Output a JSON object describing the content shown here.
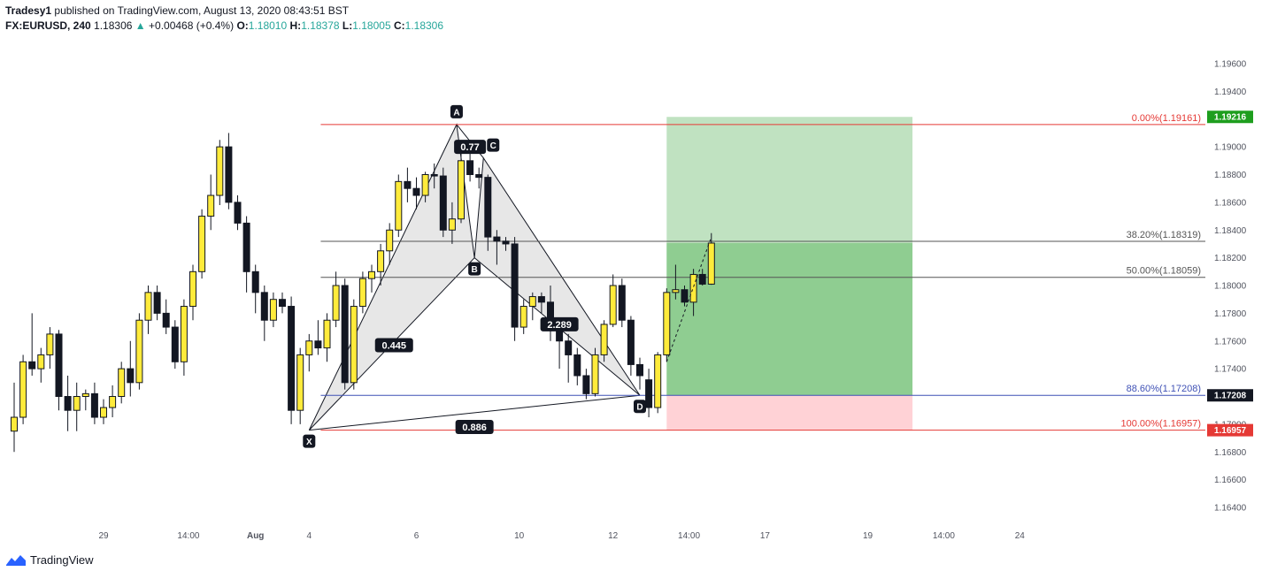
{
  "header": {
    "author": "Tradesy1",
    "published_text": "published on TradingView.com, August 13, 2020 08:43:51 BST",
    "symbol": "FX:EURUSD, 240",
    "last": "1.18306",
    "change": "+0.00468 (+0.4%)",
    "o_label": "O:",
    "o_value": "1.18010",
    "h_label": "H:",
    "h_value": "1.18378",
    "l_label": "L:",
    "l_value": "1.18005",
    "c_label": "C:",
    "c_value": "1.18306"
  },
  "footer": {
    "brand": "TradingView",
    "logo_icon": "tradingview-logo-icon"
  },
  "chart_data": {
    "type": "candlestick",
    "y_axis": {
      "range": [
        1.1625,
        1.198
      ],
      "ticks": [
        "1.19600",
        "1.19400",
        "1.19200",
        "1.19000",
        "1.18800",
        "1.18600",
        "1.18400",
        "1.18200",
        "1.18000",
        "1.17800",
        "1.17600",
        "1.17400",
        "1.17200",
        "1.17000",
        "1.16800",
        "1.16600",
        "1.16400"
      ],
      "tick_values": [
        1.196,
        1.194,
        1.192,
        1.19,
        1.188,
        1.186,
        1.184,
        1.182,
        1.18,
        1.178,
        1.176,
        1.174,
        1.172,
        1.17,
        1.168,
        1.166,
        1.164
      ]
    },
    "x_axis": {
      "labels": [
        "29",
        "14:00",
        "Aug",
        "4",
        "6",
        "10",
        "12",
        "14:00",
        "17",
        "19",
        "14:00",
        "24"
      ],
      "label_bar_index": [
        10,
        19.5,
        27,
        33,
        45,
        56.5,
        67,
        75.5,
        84,
        95.5,
        104,
        112.5
      ],
      "bold": [
        false,
        false,
        true,
        false,
        false,
        false,
        false,
        false,
        false,
        false,
        false,
        false
      ]
    },
    "candles": [
      [
        1.1695,
        1.173,
        1.168,
        1.1705
      ],
      [
        1.1705,
        1.175,
        1.17,
        1.1745
      ],
      [
        1.1745,
        1.178,
        1.1735,
        1.174
      ],
      [
        1.174,
        1.1755,
        1.173,
        1.175
      ],
      [
        1.175,
        1.177,
        1.174,
        1.1765
      ],
      [
        1.1765,
        1.1768,
        1.171,
        1.172
      ],
      [
        1.172,
        1.1735,
        1.1695,
        1.171
      ],
      [
        1.171,
        1.173,
        1.1695,
        1.172
      ],
      [
        1.172,
        1.1725,
        1.171,
        1.1722
      ],
      [
        1.1722,
        1.173,
        1.17,
        1.1705
      ],
      [
        1.1705,
        1.1718,
        1.17,
        1.1712
      ],
      [
        1.1712,
        1.1728,
        1.1705,
        1.172
      ],
      [
        1.172,
        1.1745,
        1.1715,
        1.174
      ],
      [
        1.174,
        1.176,
        1.172,
        1.173
      ],
      [
        1.173,
        1.178,
        1.1725,
        1.1775
      ],
      [
        1.1775,
        1.18,
        1.1765,
        1.1795
      ],
      [
        1.1795,
        1.18,
        1.1775,
        1.178
      ],
      [
        1.178,
        1.179,
        1.1765,
        1.177
      ],
      [
        1.177,
        1.1775,
        1.174,
        1.1745
      ],
      [
        1.1745,
        1.179,
        1.1735,
        1.1785
      ],
      [
        1.1785,
        1.1815,
        1.1775,
        1.181
      ],
      [
        1.181,
        1.1855,
        1.1805,
        1.185
      ],
      [
        1.185,
        1.188,
        1.184,
        1.1865
      ],
      [
        1.1865,
        1.1905,
        1.1858,
        1.19
      ],
      [
        1.19,
        1.191,
        1.1855,
        1.186
      ],
      [
        1.186,
        1.1865,
        1.184,
        1.1845
      ],
      [
        1.1845,
        1.185,
        1.1795,
        1.181
      ],
      [
        1.181,
        1.1815,
        1.178,
        1.1795
      ],
      [
        1.1795,
        1.18,
        1.176,
        1.1775
      ],
      [
        1.1775,
        1.1795,
        1.177,
        1.179
      ],
      [
        1.179,
        1.1795,
        1.178,
        1.1785
      ],
      [
        1.1785,
        1.1792,
        1.17,
        1.171
      ],
      [
        1.171,
        1.1755,
        1.17,
        1.175
      ],
      [
        1.175,
        1.1765,
        1.1738,
        1.176
      ],
      [
        1.176,
        1.1775,
        1.175,
        1.1755
      ],
      [
        1.1755,
        1.178,
        1.1745,
        1.1775
      ],
      [
        1.1775,
        1.181,
        1.177,
        1.18
      ],
      [
        1.18,
        1.1805,
        1.1725,
        1.173
      ],
      [
        1.173,
        1.179,
        1.1725,
        1.1785
      ],
      [
        1.1785,
        1.181,
        1.178,
        1.1805
      ],
      [
        1.1805,
        1.1815,
        1.1795,
        1.181
      ],
      [
        1.181,
        1.183,
        1.18,
        1.1825
      ],
      [
        1.1825,
        1.1845,
        1.1815,
        1.184
      ],
      [
        1.184,
        1.188,
        1.1835,
        1.1875
      ],
      [
        1.1875,
        1.1885,
        1.186,
        1.187
      ],
      [
        1.187,
        1.1878,
        1.1855,
        1.1865
      ],
      [
        1.1865,
        1.1882,
        1.186,
        1.188
      ],
      [
        1.188,
        1.1888,
        1.187,
        1.1879
      ],
      [
        1.1879,
        1.1885,
        1.1835,
        1.184
      ],
      [
        1.184,
        1.186,
        1.183,
        1.1848
      ],
      [
        1.1848,
        1.1895,
        1.1845,
        1.189
      ],
      [
        1.189,
        1.1905,
        1.1875,
        1.188
      ],
      [
        1.188,
        1.1885,
        1.187,
        1.1878
      ],
      [
        1.1878,
        1.188,
        1.1825,
        1.1835
      ],
      [
        1.1835,
        1.184,
        1.1815,
        1.1832
      ],
      [
        1.1832,
        1.1835,
        1.1825,
        1.183
      ],
      [
        1.183,
        1.1835,
        1.176,
        1.177
      ],
      [
        1.177,
        1.179,
        1.1765,
        1.1785
      ],
      [
        1.1785,
        1.1795,
        1.1775,
        1.1792
      ],
      [
        1.1792,
        1.1795,
        1.178,
        1.1788
      ],
      [
        1.1788,
        1.18,
        1.176,
        1.177
      ],
      [
        1.177,
        1.1775,
        1.174,
        1.176
      ],
      [
        1.176,
        1.1765,
        1.173,
        1.175
      ],
      [
        1.175,
        1.1755,
        1.1728,
        1.1735
      ],
      [
        1.1735,
        1.174,
        1.1718,
        1.1722
      ],
      [
        1.1722,
        1.1755,
        1.172,
        1.175
      ],
      [
        1.175,
        1.1775,
        1.1745,
        1.1772
      ],
      [
        1.1772,
        1.1808,
        1.177,
        1.18
      ],
      [
        1.18,
        1.1805,
        1.177,
        1.1775
      ],
      [
        1.1775,
        1.1778,
        1.1735,
        1.1743
      ],
      [
        1.1743,
        1.1748,
        1.1725,
        1.1735
      ],
      [
        1.1732,
        1.174,
        1.1705,
        1.1712
      ],
      [
        1.1712,
        1.1752,
        1.1708,
        1.175
      ],
      [
        1.175,
        1.1798,
        1.1745,
        1.1795
      ],
      [
        1.1795,
        1.1815,
        1.179,
        1.1797
      ],
      [
        1.1797,
        1.18,
        1.1785,
        1.1788
      ],
      [
        1.1788,
        1.1812,
        1.1778,
        1.1808
      ],
      [
        1.1808,
        1.1812,
        1.18,
        1.1801
      ],
      [
        1.1801,
        1.18378,
        1.18005,
        1.18306
      ]
    ],
    "fib_levels": [
      {
        "label": "0.00%(1.19161)",
        "value": 1.19161,
        "color": "#e53935"
      },
      {
        "label": "38.20%(1.18319)",
        "value": 1.18319,
        "color": "#555555"
      },
      {
        "label": "50.00%(1.18059)",
        "value": 1.18059,
        "color": "#555555"
      },
      {
        "label": "88.60%(1.17208)",
        "value": 1.17208,
        "color": "#3f51b5"
      },
      {
        "label": "100.00%(1.16957)",
        "value": 1.16957,
        "color": "#e53935"
      }
    ],
    "price_tags": [
      {
        "label": "1.19216",
        "value": 1.19216,
        "color": "#1e9e1e"
      },
      {
        "label": "1.17208",
        "value": 1.17208,
        "color": "#131722"
      },
      {
        "label": "1.16957",
        "value": 1.16957,
        "color": "#e53935"
      }
    ],
    "pattern": {
      "points": [
        {
          "name": "X",
          "bar": 33,
          "price": 1.16957
        },
        {
          "name": "A",
          "bar": 49.5,
          "price": 1.19161
        },
        {
          "name": "B",
          "bar": 51.5,
          "price": 1.182
        },
        {
          "name": "C",
          "bar": 52.5,
          "price": 1.1892
        },
        {
          "name": "D",
          "bar": 70,
          "price": 1.17208
        }
      ],
      "ratios": [
        {
          "label": "0.445",
          "bar": 42.5,
          "price": 1.1757
        },
        {
          "label": "0.77",
          "bar": 51,
          "price": 1.19
        },
        {
          "label": "2.289",
          "bar": 61,
          "price": 1.1772
        },
        {
          "label": "0.886",
          "bar": 51.5,
          "price": 1.1698
        }
      ]
    },
    "position": {
      "entry": 1.17208,
      "target": 1.19216,
      "stop": 1.16957,
      "start_bar": 73,
      "end_bar": 100.5
    }
  }
}
